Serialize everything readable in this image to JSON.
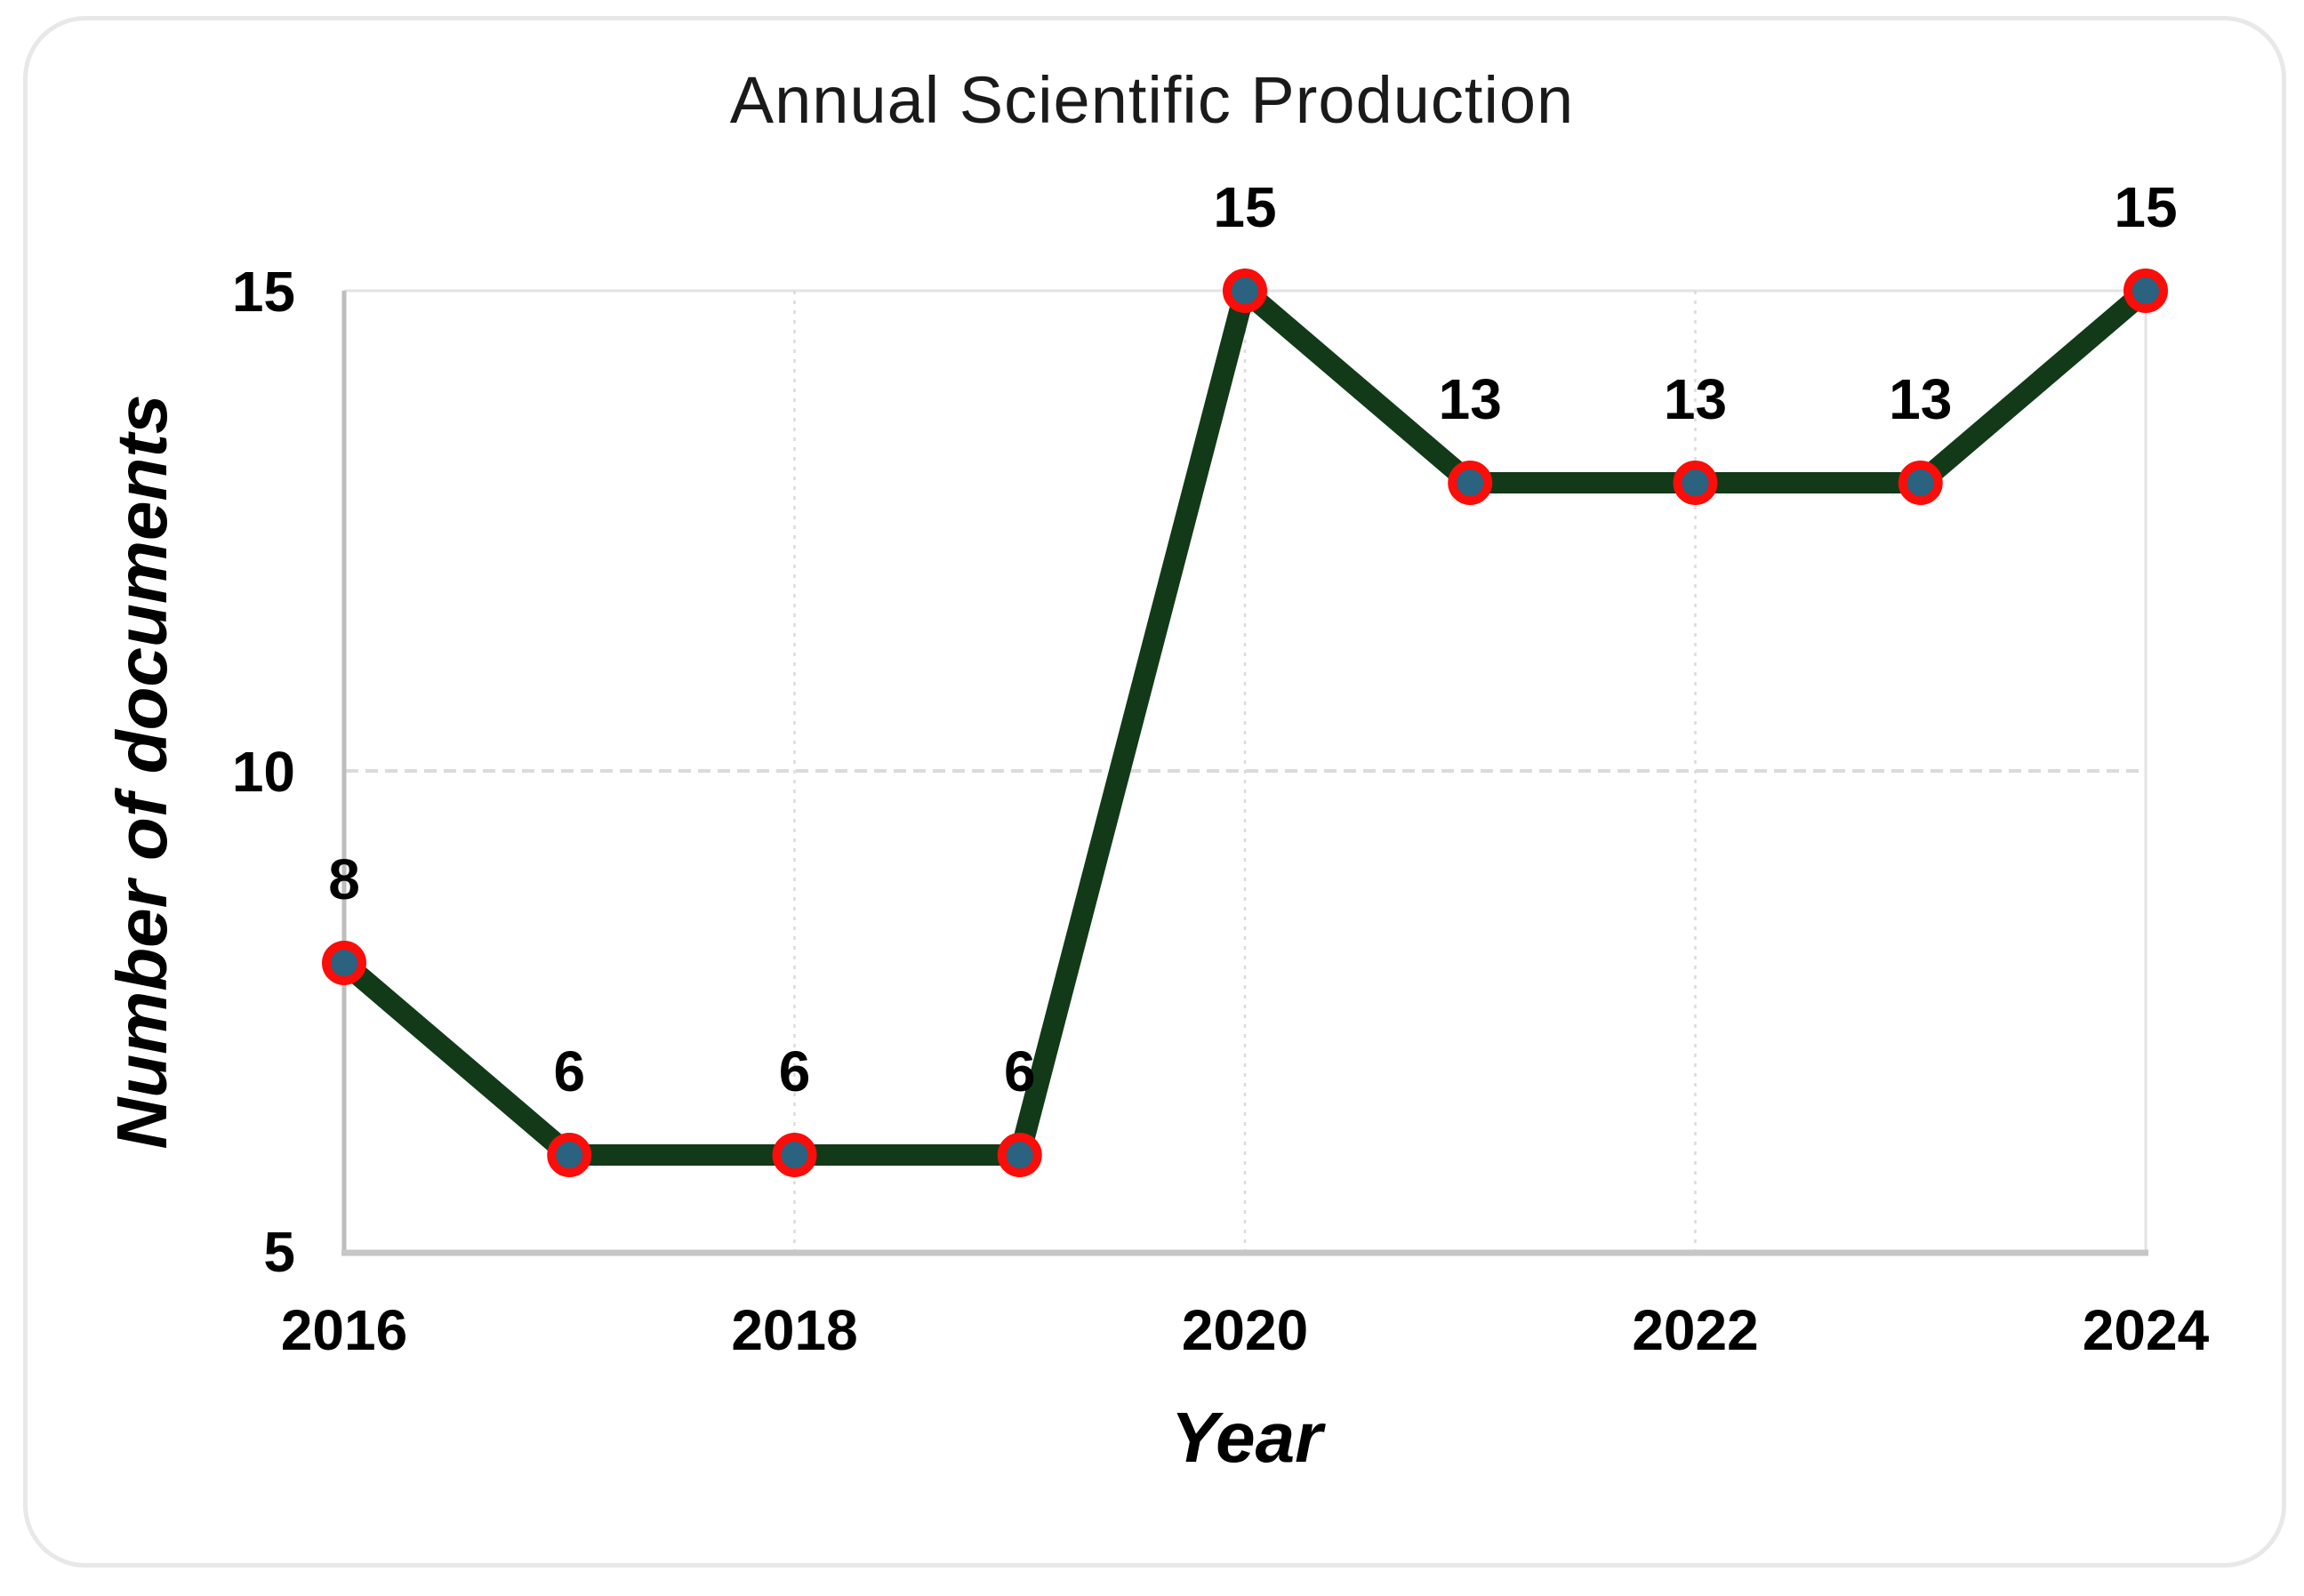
{
  "chart_data": {
    "type": "line",
    "title": "Annual Scientific Production",
    "xlabel": "Year",
    "ylabel": "Number of documents",
    "x": [
      2016,
      2017,
      2018,
      2019,
      2020,
      2021,
      2022,
      2023,
      2024
    ],
    "values": [
      8,
      6,
      6,
      6,
      15,
      13,
      13,
      13,
      15
    ],
    "point_labels": [
      "8",
      "6",
      "6",
      "6",
      "15",
      "13",
      "13",
      "13",
      "15"
    ],
    "x_ticks": [
      2016,
      2018,
      2020,
      2022,
      2024
    ],
    "x_tick_labels": [
      "2016",
      "2018",
      "2020",
      "2022",
      "2024"
    ],
    "y_ticks": [
      5,
      10,
      15
    ],
    "y_tick_labels": [
      "5",
      "10",
      "15"
    ],
    "xlim": [
      2016,
      2024
    ],
    "ylim": [
      5,
      15
    ],
    "legend": "none",
    "grid": {
      "horizontal_dashed_at": [
        10
      ],
      "vertical_dotted_at": [
        2018,
        2020,
        2022
      ],
      "top_border_at": 15,
      "right_border_at": 2024
    },
    "colors": {
      "line": "#123A18",
      "marker_fill": "#2A6280",
      "marker_ring": "#FB0D0A",
      "gridline": "#DBDBDB",
      "y_axis": "#BDBDBD",
      "x_axis": "#C6C6C6",
      "plot_border": "#E3E3E3",
      "tick_text": "#000000",
      "data_label_text": "#000000",
      "title_text": "#1A1A1A",
      "card_border": "#E8E8E8",
      "background": "#FFFFFF"
    }
  }
}
